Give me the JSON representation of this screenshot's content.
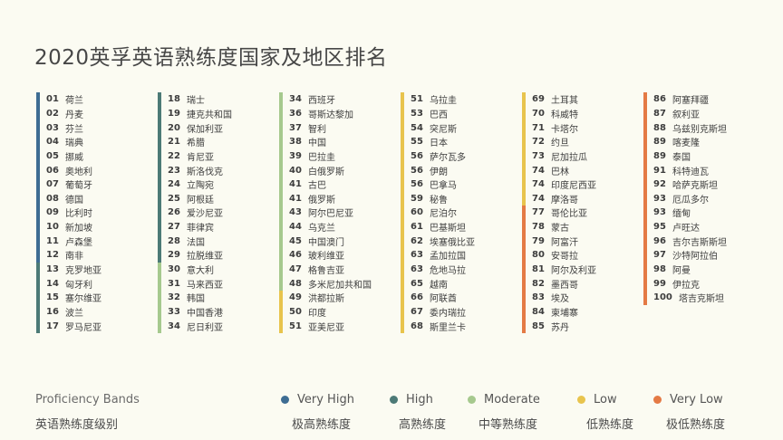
{
  "title": "2020英孚英语熟练度国家及地区排名",
  "colors": {
    "very_high": "#3e6d93",
    "high": "#4c7a76",
    "moderate": "#a6c98e",
    "low": "#e8c44d",
    "very_low": "#e47a45"
  },
  "columns": [
    [
      {
        "rank": "01",
        "name": "荷兰",
        "band": "very_high"
      },
      {
        "rank": "02",
        "name": "丹麦",
        "band": "very_high"
      },
      {
        "rank": "03",
        "name": "芬兰",
        "band": "very_high"
      },
      {
        "rank": "04",
        "name": "瑞典",
        "band": "very_high"
      },
      {
        "rank": "05",
        "name": "挪威",
        "band": "very_high"
      },
      {
        "rank": "06",
        "name": "奥地利",
        "band": "very_high"
      },
      {
        "rank": "07",
        "name": "葡萄牙",
        "band": "very_high"
      },
      {
        "rank": "08",
        "name": "德国",
        "band": "very_high"
      },
      {
        "rank": "09",
        "name": "比利时",
        "band": "very_high"
      },
      {
        "rank": "10",
        "name": "新加坡",
        "band": "very_high"
      },
      {
        "rank": "11",
        "name": "卢森堡",
        "band": "very_high"
      },
      {
        "rank": "12",
        "name": "南非",
        "band": "very_high"
      },
      {
        "rank": "13",
        "name": "克罗地亚",
        "band": "high"
      },
      {
        "rank": "14",
        "name": "匈牙利",
        "band": "high"
      },
      {
        "rank": "15",
        "name": "塞尔维亚",
        "band": "high"
      },
      {
        "rank": "16",
        "name": "波兰",
        "band": "high"
      },
      {
        "rank": "17",
        "name": "罗马尼亚",
        "band": "high"
      }
    ],
    [
      {
        "rank": "18",
        "name": "瑞士",
        "band": "high"
      },
      {
        "rank": "19",
        "name": "捷克共和国",
        "band": "high"
      },
      {
        "rank": "20",
        "name": "保加利亚",
        "band": "high"
      },
      {
        "rank": "21",
        "name": "希腊",
        "band": "high"
      },
      {
        "rank": "22",
        "name": "肯尼亚",
        "band": "high"
      },
      {
        "rank": "23",
        "name": "斯洛伐克",
        "band": "high"
      },
      {
        "rank": "24",
        "name": "立陶宛",
        "band": "high"
      },
      {
        "rank": "25",
        "name": "阿根廷",
        "band": "high"
      },
      {
        "rank": "26",
        "name": "爱沙尼亚",
        "band": "high"
      },
      {
        "rank": "27",
        "name": "菲律宾",
        "band": "high"
      },
      {
        "rank": "28",
        "name": "法国",
        "band": "high"
      },
      {
        "rank": "29",
        "name": "拉脱维亚",
        "band": "high"
      },
      {
        "rank": "30",
        "name": "意大利",
        "band": "moderate"
      },
      {
        "rank": "31",
        "name": "马来西亚",
        "band": "moderate"
      },
      {
        "rank": "32",
        "name": "韩国",
        "band": "moderate"
      },
      {
        "rank": "33",
        "name": "中国香港",
        "band": "moderate"
      },
      {
        "rank": "34",
        "name": "尼日利亚",
        "band": "moderate"
      }
    ],
    [
      {
        "rank": "34",
        "name": "西班牙",
        "band": "moderate"
      },
      {
        "rank": "36",
        "name": "哥斯达黎加",
        "band": "moderate"
      },
      {
        "rank": "37",
        "name": "智利",
        "band": "moderate"
      },
      {
        "rank": "38",
        "name": "中国",
        "band": "moderate"
      },
      {
        "rank": "39",
        "name": "巴拉圭",
        "band": "moderate"
      },
      {
        "rank": "40",
        "name": "白俄罗斯",
        "band": "moderate"
      },
      {
        "rank": "41",
        "name": "古巴",
        "band": "moderate"
      },
      {
        "rank": "41",
        "name": "俄罗斯",
        "band": "moderate"
      },
      {
        "rank": "43",
        "name": "阿尔巴尼亚",
        "band": "moderate"
      },
      {
        "rank": "44",
        "name": "乌克兰",
        "band": "moderate"
      },
      {
        "rank": "45",
        "name": "中国澳门",
        "band": "moderate"
      },
      {
        "rank": "46",
        "name": "玻利维亚",
        "band": "moderate"
      },
      {
        "rank": "47",
        "name": "格鲁吉亚",
        "band": "moderate"
      },
      {
        "rank": "48",
        "name": "多米尼加共和国",
        "band": "moderate"
      },
      {
        "rank": "49",
        "name": "洪都拉斯",
        "band": "low"
      },
      {
        "rank": "50",
        "name": "印度",
        "band": "low"
      },
      {
        "rank": "51",
        "name": "亚美尼亚",
        "band": "low"
      }
    ],
    [
      {
        "rank": "51",
        "name": "乌拉圭",
        "band": "low"
      },
      {
        "rank": "53",
        "name": "巴西",
        "band": "low"
      },
      {
        "rank": "54",
        "name": "突尼斯",
        "band": "low"
      },
      {
        "rank": "55",
        "name": "日本",
        "band": "low"
      },
      {
        "rank": "56",
        "name": "萨尔瓦多",
        "band": "low"
      },
      {
        "rank": "56",
        "name": "伊朗",
        "band": "low"
      },
      {
        "rank": "56",
        "name": "巴拿马",
        "band": "low"
      },
      {
        "rank": "59",
        "name": "秘鲁",
        "band": "low"
      },
      {
        "rank": "60",
        "name": "尼泊尔",
        "band": "low"
      },
      {
        "rank": "61",
        "name": "巴基斯坦",
        "band": "low"
      },
      {
        "rank": "62",
        "name": "埃塞俄比亚",
        "band": "low"
      },
      {
        "rank": "63",
        "name": "孟加拉国",
        "band": "low"
      },
      {
        "rank": "63",
        "name": "危地马拉",
        "band": "low"
      },
      {
        "rank": "65",
        "name": "越南",
        "band": "low"
      },
      {
        "rank": "66",
        "name": "阿联酋",
        "band": "low"
      },
      {
        "rank": "67",
        "name": "委内瑞拉",
        "band": "low"
      },
      {
        "rank": "68",
        "name": "斯里兰卡",
        "band": "low"
      }
    ],
    [
      {
        "rank": "69",
        "name": "土耳其",
        "band": "low"
      },
      {
        "rank": "70",
        "name": "科威特",
        "band": "low"
      },
      {
        "rank": "71",
        "name": "卡塔尔",
        "band": "low"
      },
      {
        "rank": "72",
        "name": "约旦",
        "band": "low"
      },
      {
        "rank": "73",
        "name": "尼加拉瓜",
        "band": "low"
      },
      {
        "rank": "74",
        "name": "巴林",
        "band": "low"
      },
      {
        "rank": "74",
        "name": "印度尼西亚",
        "band": "low"
      },
      {
        "rank": "74",
        "name": "摩洛哥",
        "band": "low"
      },
      {
        "rank": "77",
        "name": "哥伦比亚",
        "band": "very_low"
      },
      {
        "rank": "78",
        "name": "蒙古",
        "band": "very_low"
      },
      {
        "rank": "79",
        "name": "阿富汗",
        "band": "very_low"
      },
      {
        "rank": "80",
        "name": "安哥拉",
        "band": "very_low"
      },
      {
        "rank": "81",
        "name": "阿尔及利亚",
        "band": "very_low"
      },
      {
        "rank": "82",
        "name": "墨西哥",
        "band": "very_low"
      },
      {
        "rank": "83",
        "name": "埃及",
        "band": "very_low"
      },
      {
        "rank": "84",
        "name": "柬埔寨",
        "band": "very_low"
      },
      {
        "rank": "85",
        "name": "苏丹",
        "band": "very_low"
      }
    ],
    [
      {
        "rank": "86",
        "name": "阿塞拜疆",
        "band": "very_low"
      },
      {
        "rank": "87",
        "name": "叙利亚",
        "band": "very_low"
      },
      {
        "rank": "88",
        "name": "乌兹别克斯坦",
        "band": "very_low"
      },
      {
        "rank": "89",
        "name": "喀麦隆",
        "band": "very_low"
      },
      {
        "rank": "89",
        "name": "泰国",
        "band": "very_low"
      },
      {
        "rank": "91",
        "name": "科特迪瓦",
        "band": "very_low"
      },
      {
        "rank": "92",
        "name": "哈萨克斯坦",
        "band": "very_low"
      },
      {
        "rank": "93",
        "name": "厄瓜多尔",
        "band": "very_low"
      },
      {
        "rank": "93",
        "name": "缅甸",
        "band": "very_low"
      },
      {
        "rank": "95",
        "name": "卢旺达",
        "band": "very_low"
      },
      {
        "rank": "96",
        "name": "吉尔吉斯斯坦",
        "band": "very_low"
      },
      {
        "rank": "97",
        "name": "沙特阿拉伯",
        "band": "very_low"
      },
      {
        "rank": "98",
        "name": "阿曼",
        "band": "very_low"
      },
      {
        "rank": "99",
        "name": "伊拉克",
        "band": "very_low"
      },
      {
        "rank": "100",
        "name": "塔吉克斯坦",
        "band": "very_low"
      }
    ]
  ],
  "legend": {
    "title": "Proficiency Bands",
    "subtitle": "英语熟练度级别",
    "items": [
      {
        "band": "very_high",
        "label": "Very High",
        "label_cn": "极高熟练度"
      },
      {
        "band": "high",
        "label": "High",
        "label_cn": "高熟练度"
      },
      {
        "band": "moderate",
        "label": "Moderate",
        "label_cn": "中等熟练度"
      },
      {
        "band": "low",
        "label": "Low",
        "label_cn": "低熟练度"
      },
      {
        "band": "very_low",
        "label": "Very Low",
        "label_cn": "极低熟练度"
      }
    ]
  }
}
